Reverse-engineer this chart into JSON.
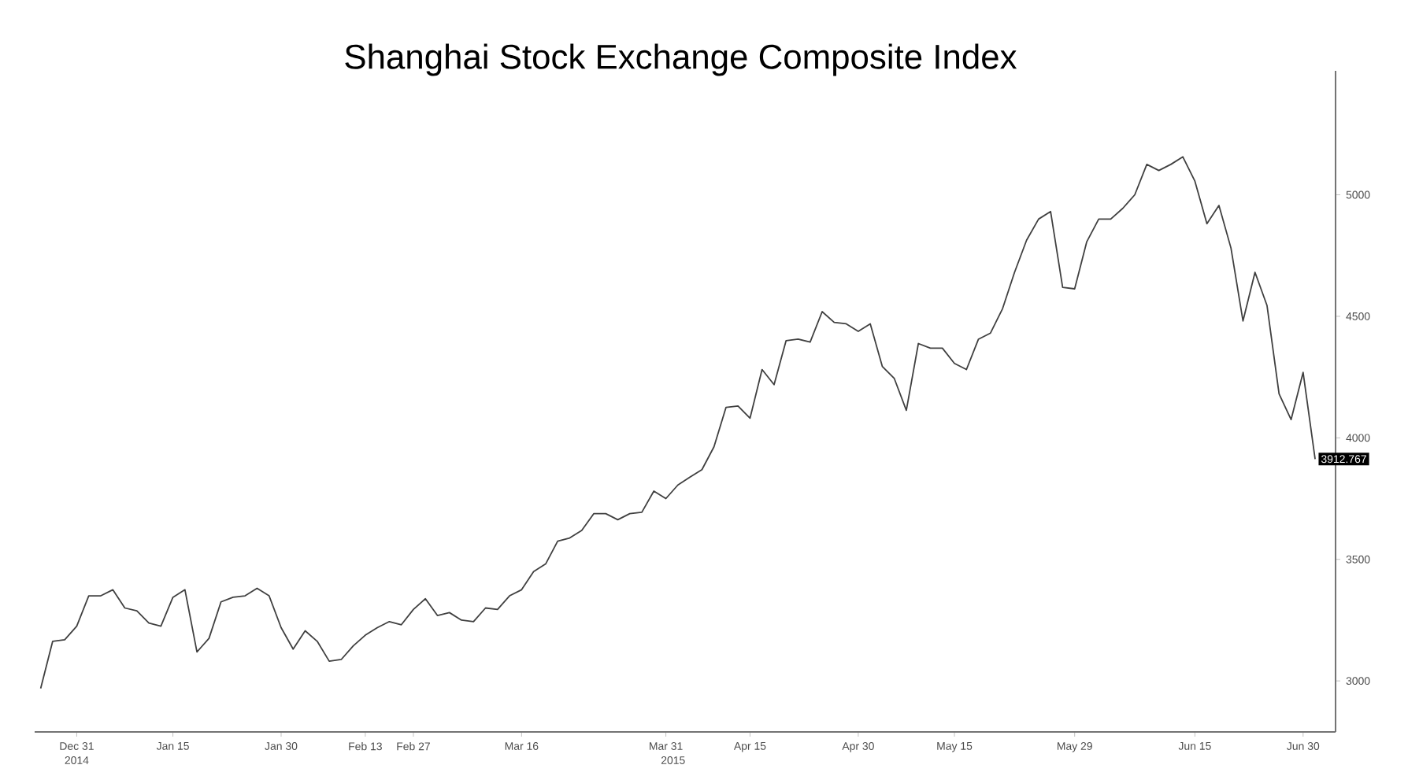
{
  "chart_data": {
    "type": "line",
    "title": "Shanghai Stock Exchange Composite Index",
    "annotations": [
      "2014",
      "2015"
    ],
    "categories": [
      null,
      null,
      null,
      "Dec 31",
      null,
      null,
      null,
      null,
      null,
      null,
      null,
      "Jan 15",
      null,
      null,
      null,
      null,
      null,
      null,
      null,
      null,
      "Jan 30",
      null,
      null,
      null,
      null,
      null,
      null,
      "Feb 13",
      null,
      null,
      null,
      "Feb 27",
      null,
      null,
      null,
      null,
      null,
      null,
      null,
      null,
      "Mar 16",
      null,
      null,
      null,
      null,
      null,
      null,
      null,
      null,
      null,
      null,
      null,
      "Mar 31",
      null,
      null,
      null,
      null,
      null,
      null,
      "Apr 15",
      null,
      null,
      null,
      null,
      null,
      null,
      null,
      null,
      "Apr 30",
      null,
      null,
      null,
      null,
      null,
      null,
      null,
      "May 15",
      null,
      null,
      null,
      null,
      null,
      null,
      null,
      null,
      null,
      "May 29",
      null,
      null,
      null,
      null,
      null,
      null,
      null,
      null,
      null,
      "Jun 15",
      null,
      null,
      null,
      null,
      null,
      null,
      null,
      null,
      "Jun 30",
      null
    ],
    "series": [
      {
        "color": "#404040",
        "values": [
          2969,
          3163,
          3169,
          3225,
          3350,
          3350,
          3375,
          3300,
          3288,
          3238,
          3225,
          3344,
          3375,
          3119,
          3175,
          3325,
          3344,
          3350,
          3381,
          3350,
          3219,
          3131,
          3206,
          3163,
          3081,
          3088,
          3144,
          3188,
          3219,
          3244,
          3231,
          3294,
          3338,
          3269,
          3281,
          3250,
          3244,
          3300,
          3294,
          3350,
          3375,
          3450,
          3481,
          3575,
          3588,
          3619,
          3688,
          3688,
          3663,
          3688,
          3694,
          3781,
          3750,
          3806,
          3838,
          3869,
          3963,
          4125,
          4131,
          4081,
          4281,
          4219,
          4400,
          4406,
          4394,
          4519,
          4475,
          4469,
          4438,
          4469,
          4294,
          4244,
          4113,
          4388,
          4369,
          4369,
          4306,
          4281,
          4406,
          4431,
          4531,
          4681,
          4813,
          4900,
          4931,
          4619,
          4613,
          4806,
          4900,
          4900,
          4944,
          5000,
          5125,
          5100,
          5125,
          5156,
          5056,
          4881,
          4956,
          4781,
          4481,
          4681,
          4544,
          4181,
          4075,
          4269,
          3912.767
        ],
        "value_labels": [
          null,
          null,
          null,
          null,
          null,
          null,
          null,
          null,
          null,
          null,
          null,
          null,
          null,
          null,
          null,
          null,
          null,
          null,
          null,
          null,
          null,
          null,
          null,
          null,
          null,
          null,
          null,
          null,
          null,
          null,
          null,
          null,
          null,
          null,
          null,
          null,
          null,
          null,
          null,
          null,
          null,
          null,
          null,
          null,
          null,
          null,
          null,
          null,
          null,
          null,
          null,
          null,
          null,
          null,
          null,
          null,
          null,
          null,
          null,
          null,
          null,
          null,
          null,
          null,
          null,
          null,
          null,
          null,
          null,
          null,
          null,
          null,
          null,
          null,
          null,
          null,
          null,
          null,
          null,
          null,
          null,
          null,
          null,
          null,
          null,
          null,
          null,
          null,
          null,
          null,
          null,
          null,
          null,
          null,
          null,
          null,
          null,
          null,
          null,
          null,
          null,
          null,
          null,
          null,
          null,
          null,
          "3912.767"
        ]
      }
    ],
    "ylim": [
      2790,
      5510
    ],
    "yticks": [
      3000,
      3500,
      4000,
      4500,
      5000
    ],
    "grid": false,
    "marker": "none",
    "line_style": "solid"
  }
}
